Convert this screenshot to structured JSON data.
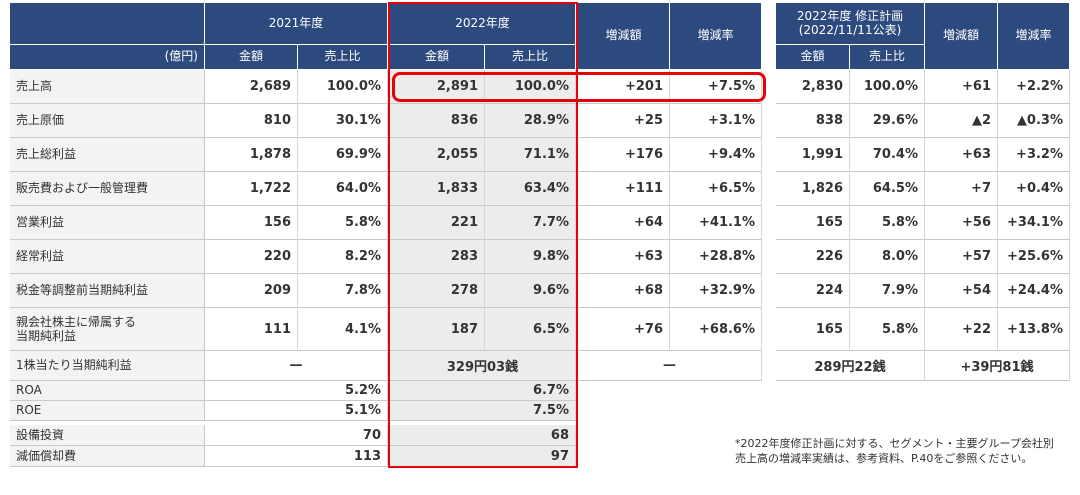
{
  "headers": {
    "fy2021": "2021年度",
    "fy2022": "2022年度",
    "diff_amount": "増減額",
    "diff_rate": "増減率",
    "plan_line1": "2022年度 修正計画",
    "plan_line2": "(2022/11/11公表)",
    "plan_diff_amount": "増減額",
    "plan_diff_rate": "増減率",
    "unit": "(億円)",
    "amount": "金額",
    "ratio": "売上比"
  },
  "rows": [
    {
      "label": "売上高",
      "a21": "2,689",
      "r21": "100.0%",
      "a22": "2,891",
      "r22": "100.0%",
      "d": "+201",
      "dr": "+7.5%",
      "pa": "2,830",
      "pr": "100.0%",
      "pd": "+61",
      "pdr": "+2.2%"
    },
    {
      "label": "売上原価",
      "a21": "810",
      "r21": "30.1%",
      "a22": "836",
      "r22": "28.9%",
      "d": "+25",
      "dr": "+3.1%",
      "pa": "838",
      "pr": "29.6%",
      "pd": "▲2",
      "pdr": "▲0.3%"
    },
    {
      "label": "売上総利益",
      "a21": "1,878",
      "r21": "69.9%",
      "a22": "2,055",
      "r22": "71.1%",
      "d": "+176",
      "dr": "+9.4%",
      "pa": "1,991",
      "pr": "70.4%",
      "pd": "+63",
      "pdr": "+3.2%"
    },
    {
      "label": "販売費および一般管理費",
      "a21": "1,722",
      "r21": "64.0%",
      "a22": "1,833",
      "r22": "63.4%",
      "d": "+111",
      "dr": "+6.5%",
      "pa": "1,826",
      "pr": "64.5%",
      "pd": "+7",
      "pdr": "+0.4%"
    },
    {
      "label": "営業利益",
      "a21": "156",
      "r21": "5.8%",
      "a22": "221",
      "r22": "7.7%",
      "d": "+64",
      "dr": "+41.1%",
      "pa": "165",
      "pr": "5.8%",
      "pd": "+56",
      "pdr": "+34.1%"
    },
    {
      "label": "経常利益",
      "a21": "220",
      "r21": "8.2%",
      "a22": "283",
      "r22": "9.8%",
      "d": "+63",
      "dr": "+28.8%",
      "pa": "226",
      "pr": "8.0%",
      "pd": "+57",
      "pdr": "+25.6%"
    },
    {
      "label": "税金等調整前当期純利益",
      "a21": "209",
      "r21": "7.8%",
      "a22": "278",
      "r22": "9.6%",
      "d": "+68",
      "dr": "+32.9%",
      "pa": "224",
      "pr": "7.9%",
      "pd": "+54",
      "pdr": "+24.4%"
    },
    {
      "label": "親会社株主に帰属する\n当期純利益",
      "a21": "111",
      "r21": "4.1%",
      "a22": "187",
      "r22": "6.5%",
      "d": "+76",
      "dr": "+68.6%",
      "pa": "165",
      "pr": "5.8%",
      "pd": "+22",
      "pdr": "+13.8%"
    }
  ],
  "eps": {
    "label": "1株当たり当期純利益",
    "v21": "—",
    "v22": "329円03銭",
    "vd": "—",
    "vp": "289円22銭",
    "vpd": "+39円81銭"
  },
  "ratios": [
    {
      "label": "ROA",
      "v21": "5.2%",
      "v22": "6.7%"
    },
    {
      "label": "ROE",
      "v21": "5.1%",
      "v22": "7.5%"
    }
  ],
  "capex": [
    {
      "label": "設備投資",
      "v21": "70",
      "v22": "68"
    },
    {
      "label": "減価償却費",
      "v21": "113",
      "v22": "97"
    }
  ],
  "note": {
    "line1": "*2022年度修正計画に対する、セグメント・主要グループ会社別",
    "line2": "売上高の増減率実績は、参考資料、P.40をご参照ください。"
  },
  "colors": {
    "header": "#2d4a7f",
    "highlight_frame": "#e8000b",
    "label_bg": "#f3f3f3"
  }
}
